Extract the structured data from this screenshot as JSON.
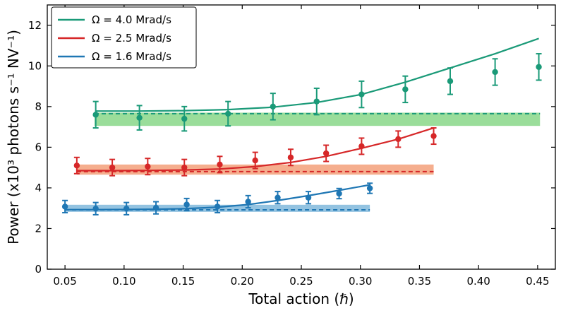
{
  "chart_data": {
    "type": "line",
    "xlabel": "Total action (ℏ)",
    "ylabel": "Power (x10³ photons s⁻¹ NV⁻¹)",
    "xlim": [
      0.035,
      0.465
    ],
    "ylim": [
      0,
      13
    ],
    "xticks": [
      "0.05",
      "0.10",
      "0.15",
      "0.20",
      "0.25",
      "0.30",
      "0.35",
      "0.40",
      "0.45"
    ],
    "xtick_values": [
      0.05,
      0.1,
      0.15,
      0.2,
      0.25,
      0.3,
      0.35,
      0.4,
      0.45
    ],
    "yticks": [
      "0",
      "2",
      "4",
      "6",
      "8",
      "10",
      "12"
    ],
    "ytick_values": [
      0,
      2,
      4,
      6,
      8,
      10,
      12
    ],
    "grid": false,
    "legend_position": "top-left",
    "series": [
      {
        "name": "Ω = 4.0 Mrad/s",
        "color": "#1a9a78",
        "band_color": "#8fd98f",
        "band": {
          "x_start": 0.075,
          "x_end": 0.452,
          "y_low": 7.05,
          "y_high": 7.7
        },
        "baseline": {
          "x_start": 0.075,
          "x_end": 0.452,
          "y": 7.65
        },
        "points": [
          {
            "x": 0.076,
            "y": 7.6,
            "err": 0.65
          },
          {
            "x": 0.113,
            "y": 7.45,
            "err": 0.6
          },
          {
            "x": 0.151,
            "y": 7.4,
            "err": 0.6
          },
          {
            "x": 0.188,
            "y": 7.65,
            "err": 0.6
          },
          {
            "x": 0.226,
            "y": 8.0,
            "err": 0.65
          },
          {
            "x": 0.263,
            "y": 8.25,
            "err": 0.65
          },
          {
            "x": 0.301,
            "y": 8.6,
            "err": 0.65
          },
          {
            "x": 0.338,
            "y": 8.85,
            "err": 0.65
          },
          {
            "x": 0.376,
            "y": 9.25,
            "err": 0.65
          },
          {
            "x": 0.414,
            "y": 9.7,
            "err": 0.65
          },
          {
            "x": 0.451,
            "y": 9.95,
            "err": 0.65
          }
        ],
        "curve": [
          [
            0.076,
            7.78
          ],
          [
            0.113,
            7.78
          ],
          [
            0.151,
            7.8
          ],
          [
            0.188,
            7.85
          ],
          [
            0.226,
            7.97
          ],
          [
            0.263,
            8.2
          ],
          [
            0.301,
            8.6
          ],
          [
            0.338,
            9.2
          ],
          [
            0.376,
            9.9
          ],
          [
            0.414,
            10.6
          ],
          [
            0.451,
            11.35
          ]
        ]
      },
      {
        "name": "Ω = 2.5 Mrad/s",
        "color": "#d62728",
        "band_color": "#f4a582",
        "band": {
          "x_start": 0.06,
          "x_end": 0.362,
          "y_low": 4.65,
          "y_high": 5.15
        },
        "baseline": {
          "x_start": 0.06,
          "x_end": 0.362,
          "y": 4.8
        },
        "points": [
          {
            "x": 0.06,
            "y": 5.1,
            "err": 0.4
          },
          {
            "x": 0.09,
            "y": 5.0,
            "err": 0.4
          },
          {
            "x": 0.12,
            "y": 5.05,
            "err": 0.4
          },
          {
            "x": 0.151,
            "y": 5.0,
            "err": 0.4
          },
          {
            "x": 0.181,
            "y": 5.15,
            "err": 0.4
          },
          {
            "x": 0.211,
            "y": 5.35,
            "err": 0.4
          },
          {
            "x": 0.241,
            "y": 5.5,
            "err": 0.4
          },
          {
            "x": 0.271,
            "y": 5.7,
            "err": 0.4
          },
          {
            "x": 0.301,
            "y": 6.05,
            "err": 0.4
          },
          {
            "x": 0.332,
            "y": 6.4,
            "err": 0.4
          },
          {
            "x": 0.362,
            "y": 6.55,
            "err": 0.4
          }
        ],
        "curve": [
          [
            0.06,
            4.85
          ],
          [
            0.09,
            4.85
          ],
          [
            0.12,
            4.86
          ],
          [
            0.151,
            4.88
          ],
          [
            0.181,
            4.93
          ],
          [
            0.211,
            5.05
          ],
          [
            0.241,
            5.25
          ],
          [
            0.271,
            5.55
          ],
          [
            0.301,
            5.95
          ],
          [
            0.332,
            6.4
          ],
          [
            0.362,
            6.95
          ]
        ]
      },
      {
        "name": "Ω = 1.6 Mrad/s",
        "color": "#1f77b4",
        "band_color": "#87bcde",
        "band": {
          "x_start": 0.05,
          "x_end": 0.308,
          "y_low": 2.82,
          "y_high": 3.17
        },
        "baseline": {
          "x_start": 0.05,
          "x_end": 0.308,
          "y": 2.92
        },
        "points": [
          {
            "x": 0.05,
            "y": 3.08,
            "err": 0.3
          },
          {
            "x": 0.076,
            "y": 2.98,
            "err": 0.3
          },
          {
            "x": 0.102,
            "y": 2.98,
            "err": 0.3
          },
          {
            "x": 0.127,
            "y": 3.02,
            "err": 0.3
          },
          {
            "x": 0.153,
            "y": 3.18,
            "err": 0.3
          },
          {
            "x": 0.179,
            "y": 3.08,
            "err": 0.3
          },
          {
            "x": 0.205,
            "y": 3.32,
            "err": 0.3
          },
          {
            "x": 0.23,
            "y": 3.52,
            "err": 0.3
          },
          {
            "x": 0.256,
            "y": 3.52,
            "err": 0.3
          },
          {
            "x": 0.282,
            "y": 3.72,
            "err": 0.25
          },
          {
            "x": 0.308,
            "y": 3.98,
            "err": 0.25
          }
        ],
        "curve": [
          [
            0.05,
            2.93
          ],
          [
            0.076,
            2.93
          ],
          [
            0.102,
            2.94
          ],
          [
            0.127,
            2.95
          ],
          [
            0.153,
            2.98
          ],
          [
            0.179,
            3.05
          ],
          [
            0.205,
            3.18
          ],
          [
            0.23,
            3.38
          ],
          [
            0.256,
            3.62
          ],
          [
            0.282,
            3.88
          ],
          [
            0.308,
            4.15
          ]
        ]
      }
    ]
  }
}
